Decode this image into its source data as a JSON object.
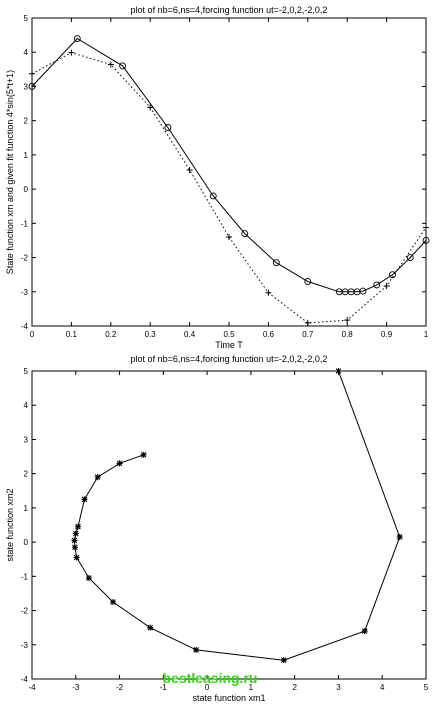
{
  "chart_data": [
    {
      "type": "line",
      "title": "plot of nb=6,ns=4,forcing function ut=-2,0,2,-2,0,2",
      "xlabel": "Time T",
      "ylabel": "State function xm and given fit function 4*sin(5*t+1)",
      "xlim": [
        0,
        1
      ],
      "ylim": [
        -4,
        5
      ],
      "xticks": [
        "0",
        "0.1",
        "0.2",
        "0.3",
        "0.4",
        "0.5",
        "0.6",
        "0.7",
        "0.8",
        "0.9",
        "1"
      ],
      "yticks": [
        "-4",
        "-3",
        "-2",
        "-1",
        "0",
        "1",
        "2",
        "3",
        "4",
        "5"
      ],
      "grid": false,
      "series": [
        {
          "marker": "circle",
          "style": "solid",
          "color": "#000000",
          "x": [
            0,
            0.115,
            0.23,
            0.345,
            0.46,
            0.54,
            0.62,
            0.7,
            0.78,
            0.795,
            0.81,
            0.825,
            0.84,
            0.875,
            0.915,
            0.96,
            1.0
          ],
          "y": [
            3.0,
            4.4,
            3.6,
            1.8,
            -0.2,
            -1.3,
            -2.15,
            -2.7,
            -3.0,
            -3.0,
            -3.0,
            -3.0,
            -2.98,
            -2.8,
            -2.5,
            -2.0,
            -1.5
          ]
        },
        {
          "marker": "plus",
          "style": "dotted",
          "color": "#000000",
          "x": [
            0,
            0.1,
            0.2,
            0.3,
            0.4,
            0.5,
            0.6,
            0.7,
            0.8,
            0.9,
            1.0
          ],
          "y": [
            3.37,
            3.99,
            3.64,
            2.39,
            0.56,
            -1.4,
            -3.03,
            -3.91,
            -3.83,
            -2.83,
            -1.12
          ]
        }
      ]
    },
    {
      "type": "line",
      "title": "plot of nb=6,ns=4,forcing function ut=-2,0,2,-2,0,2",
      "xlabel": "state function xm1",
      "ylabel": "state function xm2",
      "xlim": [
        -4,
        5
      ],
      "ylim": [
        -4,
        5
      ],
      "xticks": [
        "-4",
        "-3",
        "-2",
        "-1",
        "0",
        "1",
        "2",
        "3",
        "4",
        "5"
      ],
      "yticks": [
        "-4",
        "-3",
        "-2",
        "-1",
        "0",
        "1",
        "2",
        "3",
        "4",
        "5"
      ],
      "grid": false,
      "series": [
        {
          "marker": "star",
          "style": "solid",
          "color": "#000000",
          "x": [
            3.0,
            4.4,
            3.6,
            1.75,
            -0.25,
            -1.3,
            -2.15,
            -2.7,
            -2.98,
            -3.02,
            -3.03,
            -3.0,
            -2.95,
            -2.8,
            -2.5,
            -2.0,
            -1.45
          ],
          "y": [
            5.0,
            0.15,
            -2.6,
            -3.45,
            -3.15,
            -2.5,
            -1.75,
            -1.05,
            -0.45,
            -0.15,
            0.05,
            0.25,
            0.45,
            1.25,
            1.9,
            2.3,
            2.55
          ]
        }
      ]
    }
  ],
  "watermark": "bestleasing.ru"
}
